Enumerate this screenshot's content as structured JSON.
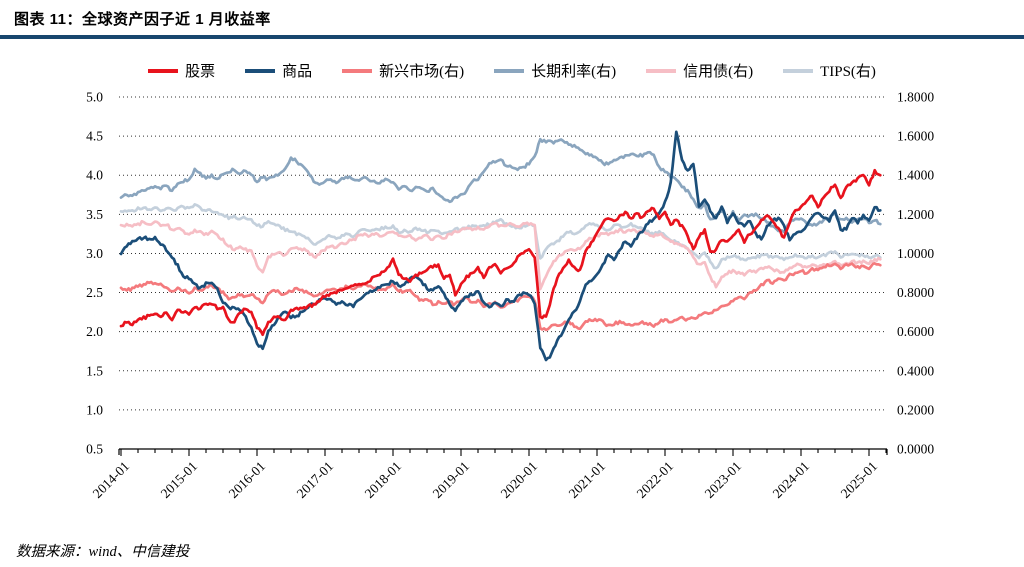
{
  "header": {
    "title": "图表 11：全球资产因子近 1 月收益率"
  },
  "footer": {
    "source": "数据来源：wind、中信建投"
  },
  "colors": {
    "rule": "#17466e",
    "grid": "#333333",
    "axis": "#000000"
  },
  "chart_data": {
    "type": "line",
    "title": "全球资产因子近 1 月收益率",
    "x_start": "2014-01",
    "x_step_months": 1,
    "x_tick_labels": [
      "2014-01",
      "2015-01",
      "2016-01",
      "2017-01",
      "2018-01",
      "2019-01",
      "2020-01",
      "2021-01",
      "2022-01",
      "2023-01",
      "2024-01",
      "2025-01"
    ],
    "left_axis": {
      "min": 0.5,
      "max": 5.0,
      "tick_labels": [
        "5.0",
        "4.5",
        "4.0",
        "3.5",
        "3.0",
        "2.5",
        "2.0",
        "1.5",
        "1.0",
        "0.5"
      ]
    },
    "right_axis": {
      "min": 0.0,
      "max": 1.8,
      "tick_labels": [
        "1.8000",
        "1.6000",
        "1.4000",
        "1.2000",
        "1.0000",
        "0.8000",
        "0.6000",
        "0.4000",
        "0.2000",
        "0.0000"
      ]
    },
    "grid": "horizontal-dotted",
    "legend_position": "top-center",
    "series": [
      {
        "name": "股票",
        "axis": "left",
        "color": "#e8131d",
        "values": [
          2.08,
          2.12,
          2.1,
          2.15,
          2.18,
          2.2,
          2.22,
          2.18,
          2.25,
          2.15,
          2.27,
          2.25,
          2.22,
          2.32,
          2.3,
          2.35,
          2.36,
          2.3,
          2.32,
          2.15,
          2.12,
          2.25,
          2.3,
          2.25,
          2.05,
          1.97,
          2.12,
          2.2,
          2.18,
          2.15,
          2.28,
          2.3,
          2.3,
          2.32,
          2.35,
          2.4,
          2.45,
          2.48,
          2.5,
          2.52,
          2.55,
          2.58,
          2.62,
          2.6,
          2.65,
          2.72,
          2.75,
          2.82,
          2.92,
          2.72,
          2.68,
          2.65,
          2.72,
          2.75,
          2.8,
          2.83,
          2.85,
          2.68,
          2.72,
          2.48,
          2.6,
          2.7,
          2.75,
          2.82,
          2.7,
          2.82,
          2.87,
          2.75,
          2.8,
          2.85,
          2.95,
          3.0,
          3.05,
          2.95,
          2.2,
          2.18,
          2.45,
          2.7,
          2.8,
          2.92,
          2.82,
          2.78,
          3.02,
          3.15,
          3.25,
          3.4,
          3.45,
          3.42,
          3.48,
          3.52,
          3.45,
          3.52,
          3.45,
          3.55,
          3.58,
          3.45,
          3.52,
          3.38,
          3.42,
          3.35,
          3.22,
          3.05,
          3.22,
          3.3,
          3.02,
          3.05,
          3.18,
          3.15,
          3.22,
          3.3,
          3.15,
          3.25,
          3.32,
          3.42,
          3.5,
          3.4,
          3.32,
          3.2,
          3.4,
          3.55,
          3.6,
          3.68,
          3.75,
          3.6,
          3.72,
          3.8,
          3.88,
          3.7,
          3.85,
          3.9,
          3.95,
          4.0,
          3.88,
          4.05,
          4.0
        ]
      },
      {
        "name": "商品",
        "axis": "left",
        "color": "#1b4e79",
        "values": [
          3.0,
          3.1,
          3.15,
          3.18,
          3.2,
          3.18,
          3.2,
          3.12,
          3.05,
          2.95,
          2.85,
          2.7,
          2.68,
          2.6,
          2.55,
          2.62,
          2.62,
          2.55,
          2.38,
          2.3,
          2.32,
          2.28,
          2.18,
          2.05,
          1.85,
          1.78,
          2.0,
          2.1,
          2.18,
          2.25,
          2.18,
          2.2,
          2.25,
          2.32,
          2.35,
          2.4,
          2.42,
          2.4,
          2.35,
          2.38,
          2.35,
          2.32,
          2.42,
          2.48,
          2.52,
          2.55,
          2.58,
          2.6,
          2.65,
          2.58,
          2.6,
          2.68,
          2.72,
          2.65,
          2.55,
          2.52,
          2.58,
          2.5,
          2.35,
          2.28,
          2.4,
          2.45,
          2.48,
          2.52,
          2.38,
          2.3,
          2.38,
          2.32,
          2.4,
          2.38,
          2.45,
          2.5,
          2.48,
          2.35,
          1.8,
          1.63,
          1.72,
          1.88,
          2.0,
          2.15,
          2.25,
          2.4,
          2.6,
          2.65,
          2.72,
          2.85,
          2.98,
          2.92,
          3.05,
          3.15,
          3.1,
          3.2,
          3.28,
          3.38,
          3.45,
          3.52,
          3.65,
          3.9,
          4.55,
          4.2,
          4.05,
          4.15,
          3.6,
          3.7,
          3.55,
          3.45,
          3.6,
          3.4,
          3.5,
          3.38,
          3.35,
          3.42,
          3.25,
          3.18,
          3.35,
          3.42,
          3.45,
          3.35,
          3.18,
          3.25,
          3.28,
          3.35,
          3.48,
          3.52,
          3.45,
          3.42,
          3.55,
          3.3,
          3.32,
          3.45,
          3.4,
          3.48,
          3.42,
          3.6,
          3.55
        ]
      },
      {
        "name": "新兴市场(右)",
        "axis": "right",
        "color": "#f47a7d",
        "values": [
          0.82,
          0.81,
          0.82,
          0.83,
          0.84,
          0.85,
          0.85,
          0.84,
          0.83,
          0.81,
          0.82,
          0.81,
          0.8,
          0.82,
          0.81,
          0.83,
          0.84,
          0.82,
          0.8,
          0.77,
          0.78,
          0.79,
          0.78,
          0.79,
          0.77,
          0.75,
          0.79,
          0.81,
          0.8,
          0.79,
          0.81,
          0.82,
          0.81,
          0.8,
          0.78,
          0.79,
          0.81,
          0.82,
          0.81,
          0.82,
          0.83,
          0.82,
          0.83,
          0.84,
          0.83,
          0.82,
          0.81,
          0.82,
          0.84,
          0.81,
          0.8,
          0.81,
          0.78,
          0.76,
          0.77,
          0.74,
          0.75,
          0.74,
          0.75,
          0.74,
          0.76,
          0.77,
          0.75,
          0.76,
          0.73,
          0.74,
          0.75,
          0.72,
          0.74,
          0.75,
          0.76,
          0.78,
          0.78,
          0.76,
          0.62,
          0.61,
          0.63,
          0.63,
          0.64,
          0.65,
          0.63,
          0.62,
          0.65,
          0.66,
          0.66,
          0.65,
          0.63,
          0.64,
          0.65,
          0.64,
          0.63,
          0.64,
          0.65,
          0.64,
          0.63,
          0.65,
          0.66,
          0.65,
          0.66,
          0.67,
          0.66,
          0.67,
          0.68,
          0.7,
          0.69,
          0.71,
          0.73,
          0.74,
          0.76,
          0.78,
          0.77,
          0.8,
          0.81,
          0.84,
          0.86,
          0.85,
          0.87,
          0.86,
          0.89,
          0.9,
          0.91,
          0.9,
          0.92,
          0.91,
          0.93,
          0.94,
          0.95,
          0.92,
          0.94,
          0.95,
          0.93,
          0.94,
          0.92,
          0.95,
          0.94
        ]
      },
      {
        "name": "长期利率(右)",
        "axis": "right",
        "color": "#8aa5be",
        "values": [
          1.29,
          1.3,
          1.3,
          1.31,
          1.32,
          1.33,
          1.34,
          1.33,
          1.35,
          1.32,
          1.36,
          1.37,
          1.38,
          1.43,
          1.41,
          1.38,
          1.4,
          1.38,
          1.41,
          1.42,
          1.43,
          1.41,
          1.42,
          1.4,
          1.37,
          1.39,
          1.38,
          1.39,
          1.41,
          1.44,
          1.49,
          1.47,
          1.45,
          1.42,
          1.37,
          1.35,
          1.37,
          1.38,
          1.36,
          1.38,
          1.39,
          1.38,
          1.37,
          1.39,
          1.37,
          1.36,
          1.37,
          1.38,
          1.36,
          1.33,
          1.34,
          1.32,
          1.34,
          1.33,
          1.32,
          1.33,
          1.3,
          1.28,
          1.26,
          1.29,
          1.3,
          1.32,
          1.37,
          1.38,
          1.42,
          1.46,
          1.47,
          1.48,
          1.45,
          1.44,
          1.43,
          1.44,
          1.46,
          1.5,
          1.58,
          1.57,
          1.57,
          1.57,
          1.58,
          1.56,
          1.55,
          1.53,
          1.51,
          1.5,
          1.49,
          1.46,
          1.46,
          1.48,
          1.49,
          1.5,
          1.51,
          1.5,
          1.5,
          1.52,
          1.5,
          1.44,
          1.42,
          1.39,
          1.38,
          1.34,
          1.32,
          1.28,
          1.23,
          1.25,
          1.17,
          1.19,
          1.22,
          1.18,
          1.21,
          1.17,
          1.2,
          1.19,
          1.2,
          1.18,
          1.16,
          1.14,
          1.12,
          1.11,
          1.16,
          1.18,
          1.18,
          1.15,
          1.14,
          1.15,
          1.17,
          1.18,
          1.2,
          1.17,
          1.18,
          1.16,
          1.17,
          1.18,
          1.16,
          1.17,
          1.15
        ]
      },
      {
        "name": "信用债(右)",
        "axis": "right",
        "color": "#f6bec5",
        "values": [
          1.14,
          1.15,
          1.14,
          1.15,
          1.16,
          1.15,
          1.16,
          1.14,
          1.15,
          1.12,
          1.13,
          1.11,
          1.1,
          1.12,
          1.11,
          1.1,
          1.11,
          1.09,
          1.07,
          1.04,
          1.02,
          1.03,
          1.02,
          1.01,
          0.94,
          0.9,
          0.98,
          1.0,
          1.01,
          0.99,
          1.02,
          1.03,
          1.02,
          1.01,
          0.98,
          1.0,
          1.02,
          1.04,
          1.03,
          1.05,
          1.06,
          1.07,
          1.09,
          1.1,
          1.09,
          1.1,
          1.09,
          1.1,
          1.11,
          1.09,
          1.08,
          1.09,
          1.07,
          1.08,
          1.09,
          1.07,
          1.09,
          1.08,
          1.1,
          1.11,
          1.12,
          1.13,
          1.12,
          1.13,
          1.12,
          1.14,
          1.15,
          1.14,
          1.14,
          1.15,
          1.14,
          1.15,
          1.15,
          1.14,
          0.82,
          0.88,
          0.94,
          0.98,
          1.0,
          1.02,
          1.02,
          1.02,
          1.06,
          1.08,
          1.09,
          1.1,
          1.1,
          1.11,
          1.12,
          1.11,
          1.12,
          1.11,
          1.12,
          1.1,
          1.09,
          1.1,
          1.08,
          1.06,
          1.05,
          1.04,
          1.02,
          0.98,
          0.94,
          0.95,
          0.88,
          0.83,
          0.88,
          0.9,
          0.91,
          0.9,
          0.89,
          0.91,
          0.9,
          0.92,
          0.93,
          0.92,
          0.91,
          0.9,
          0.93,
          0.94,
          0.94,
          0.93,
          0.94,
          0.93,
          0.94,
          0.95,
          0.96,
          0.94,
          0.95,
          0.96,
          0.95,
          0.96,
          0.95,
          0.97,
          0.97
        ]
      },
      {
        "name": "TIPS(右)",
        "axis": "right",
        "color": "#c4d0dc",
        "values": [
          1.22,
          1.22,
          1.22,
          1.23,
          1.23,
          1.23,
          1.23,
          1.22,
          1.23,
          1.22,
          1.23,
          1.24,
          1.23,
          1.25,
          1.23,
          1.22,
          1.22,
          1.21,
          1.2,
          1.18,
          1.19,
          1.18,
          1.18,
          1.17,
          1.14,
          1.14,
          1.16,
          1.15,
          1.14,
          1.12,
          1.11,
          1.1,
          1.09,
          1.08,
          1.05,
          1.06,
          1.08,
          1.09,
          1.07,
          1.09,
          1.1,
          1.09,
          1.11,
          1.12,
          1.11,
          1.12,
          1.13,
          1.13,
          1.14,
          1.11,
          1.12,
          1.11,
          1.13,
          1.12,
          1.11,
          1.12,
          1.11,
          1.1,
          1.11,
          1.13,
          1.12,
          1.13,
          1.14,
          1.13,
          1.14,
          1.15,
          1.16,
          1.17,
          1.15,
          1.14,
          1.13,
          1.14,
          1.15,
          1.14,
          0.97,
          1.02,
          1.05,
          1.06,
          1.09,
          1.11,
          1.1,
          1.11,
          1.14,
          1.15,
          1.14,
          1.13,
          1.12,
          1.14,
          1.14,
          1.14,
          1.15,
          1.14,
          1.13,
          1.11,
          1.1,
          1.11,
          1.09,
          1.07,
          1.06,
          1.04,
          1.02,
          1.0,
          0.98,
          1.0,
          0.96,
          0.92,
          0.97,
          0.98,
          0.99,
          0.98,
          0.97,
          0.98,
          0.98,
          0.99,
          0.99,
          0.98,
          0.98,
          0.97,
          0.98,
          0.99,
          0.99,
          0.98,
          0.99,
          0.98,
          0.99,
          1.0,
          1.01,
          0.98,
          0.99,
          1.0,
          0.99,
          0.99,
          0.98,
          0.99,
          0.98
        ]
      }
    ]
  }
}
